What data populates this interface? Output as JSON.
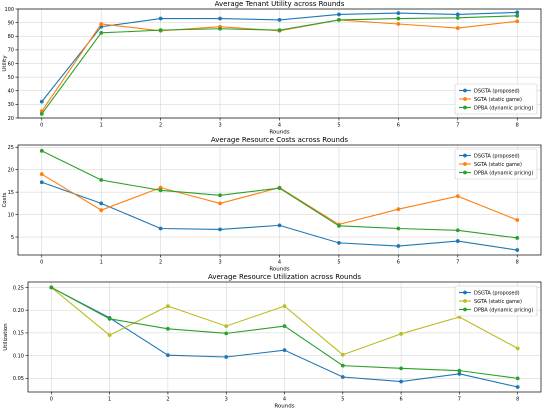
{
  "chart_data": [
    {
      "type": "line",
      "title": "Average Tenant Utility across Rounds",
      "xlabel": "Rounds",
      "ylabel": "Utility",
      "x": [
        0,
        1,
        2,
        3,
        4,
        5,
        6,
        7,
        8
      ],
      "xlim": [
        -0.4,
        8.4
      ],
      "ylim": [
        20,
        100
      ],
      "yticks": [
        20,
        30,
        40,
        50,
        60,
        70,
        80,
        90,
        100
      ],
      "grid": true,
      "legend": "lower-right",
      "series": [
        {
          "name": "DSGTA (proposed)",
          "color": "#1f77b4",
          "values": [
            32,
            87,
            93,
            93,
            92,
            96,
            97,
            96,
            97.5
          ]
        },
        {
          "name": "SGTA (static game)",
          "color": "#ff7f0e",
          "values": [
            25,
            89,
            84,
            87,
            84,
            92,
            89,
            86,
            91
          ]
        },
        {
          "name": "DPBA (dynamic pricing)",
          "color": "#2ca02c",
          "values": [
            23,
            82.5,
            84.5,
            85.5,
            84.5,
            92,
            93,
            93.5,
            95
          ]
        }
      ]
    },
    {
      "type": "line",
      "title": "Average Resource Costs across Rounds",
      "xlabel": "Rounds",
      "ylabel": "Costs",
      "x": [
        0,
        1,
        2,
        3,
        4,
        5,
        6,
        7,
        8
      ],
      "xlim": [
        -0.4,
        8.4
      ],
      "ylim": [
        1,
        25.5
      ],
      "yticks": [
        5,
        10,
        15,
        20,
        25
      ],
      "grid": true,
      "legend": "upper-right",
      "series": [
        {
          "name": "DSGTA (proposed)",
          "color": "#1f77b4",
          "values": [
            17.2,
            12.5,
            6.9,
            6.7,
            7.6,
            3.7,
            3.0,
            4.1,
            2.1
          ]
        },
        {
          "name": "SGTA (static game)",
          "color": "#ff7f0e",
          "values": [
            19.0,
            11.0,
            16.0,
            12.5,
            16.0,
            7.8,
            11.2,
            14.1,
            8.8
          ]
        },
        {
          "name": "DPBA (dynamic pricing)",
          "color": "#2ca02c",
          "values": [
            24.2,
            17.7,
            15.4,
            14.3,
            15.9,
            7.5,
            6.9,
            6.5,
            4.8
          ]
        }
      ]
    },
    {
      "type": "line",
      "title": "Average Resource Utilization across Rounds",
      "xlabel": "Rounds",
      "ylabel": "Utilization",
      "x": [
        0,
        1,
        2,
        3,
        4,
        5,
        6,
        7,
        8
      ],
      "xlim": [
        -0.4,
        8.4
      ],
      "ylim": [
        0.02,
        0.262
      ],
      "yticks": [
        0.05,
        0.1,
        0.15,
        0.2,
        0.25
      ],
      "yticklabels": [
        "0.05",
        "0.10",
        "0.15",
        "0.20",
        "0.25"
      ],
      "grid": true,
      "legend": "upper-right",
      "series": [
        {
          "name": "DSGTA (proposed)",
          "color": "#1f77b4",
          "values": [
            0.25,
            0.183,
            0.101,
            0.097,
            0.112,
            0.053,
            0.043,
            0.06,
            0.031
          ]
        },
        {
          "name": "SGTA (static game)",
          "color": "#bcbd22",
          "values": [
            0.25,
            0.145,
            0.209,
            0.165,
            0.209,
            0.102,
            0.148,
            0.185,
            0.116
          ]
        },
        {
          "name": "DPBA (dynamic pricing)",
          "color": "#2ca02c",
          "values": [
            0.25,
            0.181,
            0.159,
            0.149,
            0.165,
            0.078,
            0.072,
            0.067,
            0.05
          ]
        }
      ]
    }
  ]
}
